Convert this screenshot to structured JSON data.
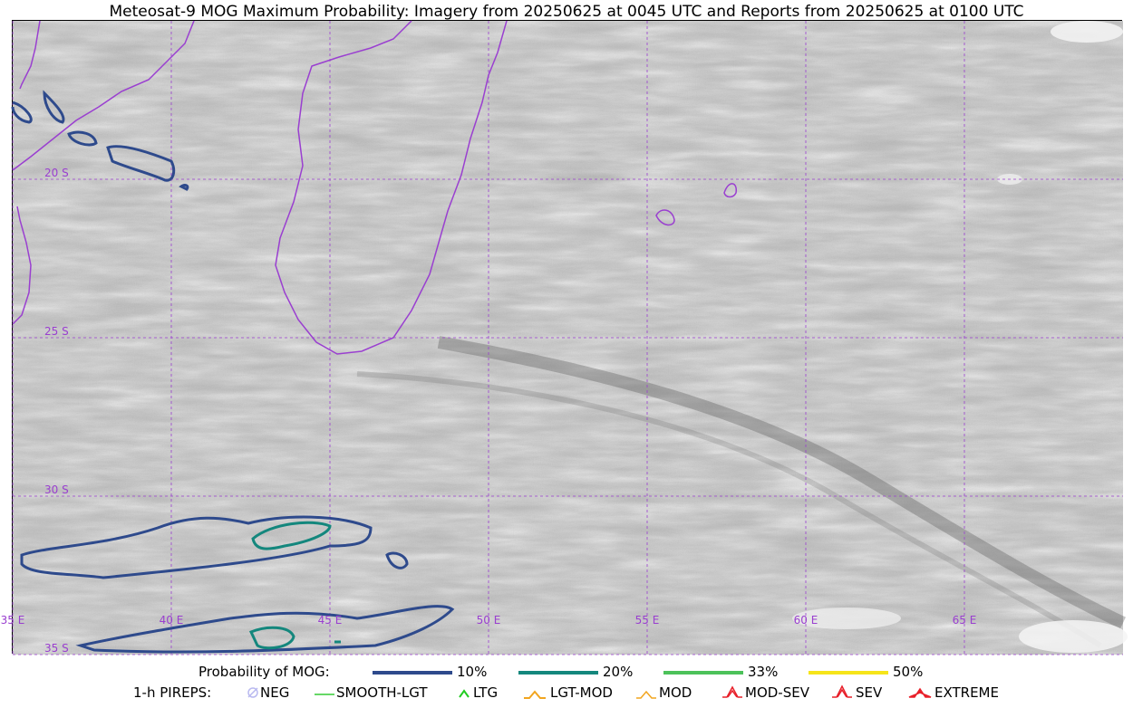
{
  "title": "Meteosat-9 MOG Maximum Probability: Imagery from 20250625 at 0045 UTC and Reports from 20250625 at 0100 UTC",
  "map": {
    "graticule_color": "#9a3fd0",
    "coastline_color": "#9a3fd0",
    "lon_labels": [
      "35 E",
      "40 E",
      "45 E",
      "50 E",
      "55 E",
      "60 E",
      "65 E"
    ],
    "lat_labels": [
      "20 S",
      "25 S",
      "30 S",
      "35 S"
    ]
  },
  "legend": {
    "probability_label": "Probability of MOG:",
    "probability_levels": [
      {
        "label": "10%",
        "color": "#2e4a8c"
      },
      {
        "label": "20%",
        "color": "#14877d"
      },
      {
        "label": "33%",
        "color": "#4cc25a"
      },
      {
        "label": "50%",
        "color": "#f6e51a"
      }
    ],
    "pirep_label": "1-h PIREPS:",
    "pirep_items": [
      {
        "label": "NEG",
        "icon": "neg-icon",
        "color": "#b9b9f0"
      },
      {
        "label": "SMOOTH-LGT",
        "icon": "smooth-lgt-icon",
        "color": "#33cc33"
      },
      {
        "label": "LTG",
        "icon": "ltg-icon",
        "color": "#22cc22"
      },
      {
        "label": "LGT-MOD",
        "icon": "lgt-mod-icon",
        "color": "#f2a51f"
      },
      {
        "label": "MOD",
        "icon": "mod-icon",
        "color": "#f2a51f"
      },
      {
        "label": "MOD-SEV",
        "icon": "mod-sev-icon",
        "color": "#e8202a"
      },
      {
        "label": "SEV",
        "icon": "sev-icon",
        "color": "#e8202a"
      },
      {
        "label": "EXTREME",
        "icon": "extreme-icon",
        "color": "#e8202a"
      }
    ]
  }
}
